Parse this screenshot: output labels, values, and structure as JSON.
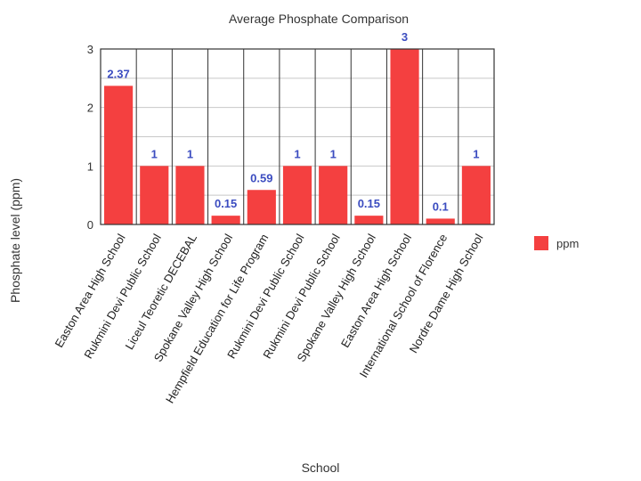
{
  "chart_data": {
    "type": "bar",
    "title": "Average Phosphate Comparison",
    "xlabel": "School",
    "ylabel": "Phosphate level (ppm)",
    "ylim": [
      0,
      3
    ],
    "yticks": [
      0,
      1,
      2,
      3
    ],
    "grid": true,
    "legend_position": "right",
    "categories": [
      "Easton Area High School",
      "Rukmini Devi Public School",
      "Liceul Teoretic DECEBAL",
      "Spokane Valley High School",
      "Hempfield Education for Life Program",
      "Rukmini Devi Public School",
      "Rukmini Devi Public School",
      "Spokane Valley High School",
      "Easton Area High School",
      "International School of Florence",
      "Nordre Dame High School"
    ],
    "series": [
      {
        "name": "ppm",
        "color": "#f44040",
        "values": [
          2.37,
          1,
          1,
          0.15,
          0.59,
          1,
          1,
          0.15,
          3,
          0.1,
          1
        ],
        "labels": [
          "2.37",
          "1",
          "1",
          "0.15",
          "0.59",
          "1",
          "1",
          "0.15",
          "3",
          "0.1",
          "1"
        ]
      }
    ]
  }
}
